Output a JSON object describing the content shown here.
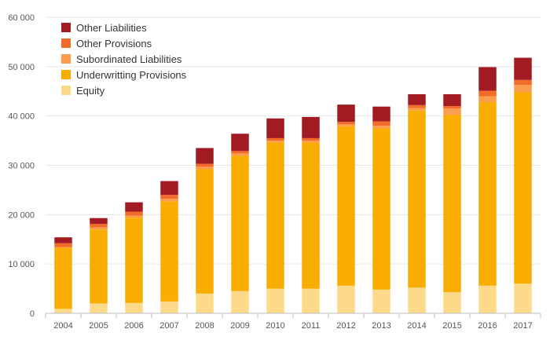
{
  "chart_data": {
    "type": "bar",
    "stacked": true,
    "title": "",
    "xlabel": "",
    "ylabel": "",
    "ylim": [
      0,
      60000
    ],
    "yticks": [
      0,
      10000,
      20000,
      30000,
      40000,
      50000,
      60000
    ],
    "ytick_labels": [
      "0",
      "10 000",
      "20 000",
      "30 000",
      "40 000",
      "50 000",
      "60 000"
    ],
    "grid": true,
    "legend_position": "top-left",
    "categories": [
      "2004",
      "2005",
      "2006",
      "2007",
      "2008",
      "2009",
      "2010",
      "2011",
      "2012",
      "2013",
      "2014",
      "2015",
      "2016",
      "2017"
    ],
    "series": [
      {
        "name": "Equity",
        "color": "#fdd98a",
        "values": [
          900,
          2000,
          2100,
          2400,
          4000,
          4500,
          5000,
          5000,
          5600,
          4800,
          5200,
          4300,
          5600,
          6000
        ]
      },
      {
        "name": "Underwritting Provisions",
        "color": "#f9ad00",
        "values": [
          12400,
          15000,
          17300,
          20300,
          25200,
          27400,
          29600,
          29600,
          32300,
          32700,
          35900,
          35900,
          37200,
          38800
        ]
      },
      {
        "name": "Subordinated Liabilities",
        "color": "#fb9d4c",
        "values": [
          100,
          400,
          400,
          500,
          500,
          500,
          400,
          400,
          400,
          500,
          500,
          1300,
          1200,
          1500
        ]
      },
      {
        "name": "Other Provisions",
        "color": "#f26b28",
        "values": [
          800,
          700,
          800,
          800,
          600,
          500,
          500,
          500,
          500,
          900,
          600,
          500,
          1100,
          1000
        ]
      },
      {
        "name": "Other Liabilities",
        "color": "#a31b22",
        "values": [
          1200,
          1200,
          1900,
          2800,
          3200,
          3500,
          4000,
          4300,
          3500,
          3000,
          2200,
          2400,
          4800,
          4500
        ]
      }
    ]
  }
}
